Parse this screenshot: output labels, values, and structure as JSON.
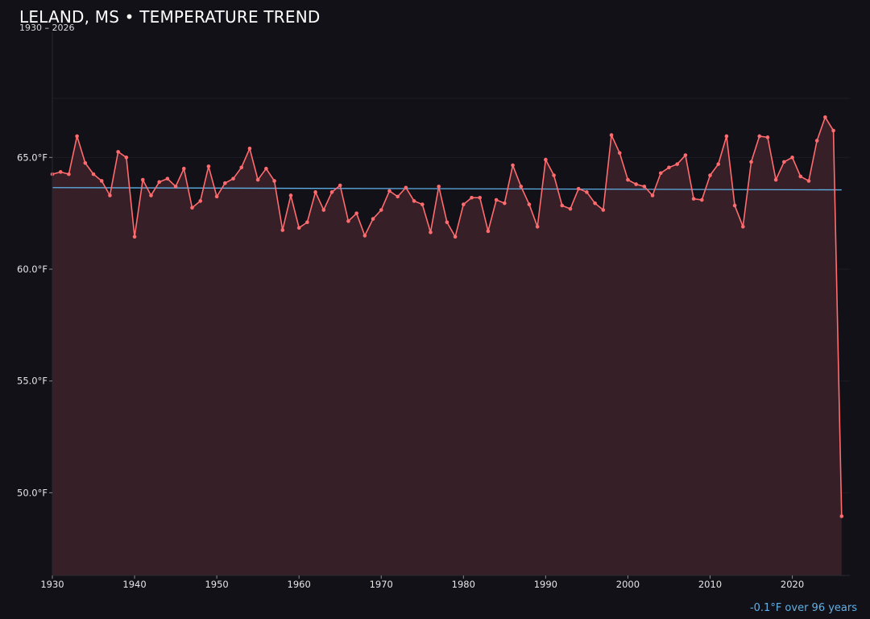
{
  "colors": {
    "background": "#121118",
    "series_line": "#ff6b6e",
    "series_fill": "#361f26",
    "trend_line": "#5fb0e6",
    "grid": "#1d1b23",
    "text": "#e6e6e6"
  },
  "header": {
    "title": "LELAND, MS • TEMPERATURE TREND",
    "subtitle": "1930 – 2026"
  },
  "footer": {
    "trend_note": "-0.1°F over 96 years"
  },
  "chart_data": {
    "type": "line",
    "title": "LELAND, MS • TEMPERATURE TREND",
    "subtitle": "1930 – 2026",
    "xlabel": "",
    "ylabel": "",
    "xlim": [
      1930,
      2027
    ],
    "ylim": [
      46.3,
      70.6
    ],
    "x_ticks": [
      1930,
      1940,
      1950,
      1960,
      1970,
      1980,
      1990,
      2000,
      2010,
      2020
    ],
    "y_ticks": [
      {
        "value": 50,
        "label": "50.0°F"
      },
      {
        "value": 55,
        "label": "55.0°F"
      },
      {
        "value": 60,
        "label": "60.0°F"
      },
      {
        "value": 65,
        "label": "65.0°F"
      }
    ],
    "grid": true,
    "series": [
      {
        "x": [
          1930,
          1931,
          1932,
          1933,
          1934,
          1935,
          1936,
          1937,
          1938,
          1939,
          1940,
          1941,
          1942,
          1943,
          1944,
          1945,
          1946,
          1947,
          1948,
          1949,
          1950,
          1951,
          1952,
          1953,
          1954,
          1955,
          1956,
          1957,
          1958,
          1959,
          1960,
          1961,
          1962,
          1963,
          1964,
          1965,
          1966,
          1967,
          1968,
          1969,
          1970,
          1971,
          1972,
          1973,
          1974,
          1975,
          1976,
          1977,
          1978,
          1979,
          1980,
          1981,
          1982,
          1983,
          1984,
          1985,
          1986,
          1987,
          1988,
          1989,
          1990,
          1991,
          1992,
          1993,
          1994,
          1995,
          1996,
          1997,
          1998,
          1999,
          2000,
          2001,
          2002,
          2003,
          2004,
          2005,
          2006,
          2007,
          2008,
          2009,
          2010,
          2011,
          2012,
          2013,
          2014,
          2015,
          2016,
          2017,
          2018,
          2019,
          2020,
          2021,
          2022,
          2023,
          2024,
          2025,
          2026
        ],
        "values": [
          64.25,
          64.35,
          64.25,
          65.95,
          64.75,
          64.25,
          63.95,
          63.3,
          65.25,
          65.0,
          61.45,
          64.0,
          63.3,
          63.9,
          64.05,
          63.7,
          64.5,
          62.75,
          63.05,
          64.6,
          63.25,
          63.85,
          64.05,
          64.55,
          65.4,
          64.0,
          64.5,
          63.95,
          61.75,
          63.3,
          61.85,
          62.1,
          63.45,
          62.65,
          63.45,
          63.75,
          62.15,
          62.5,
          61.5,
          62.25,
          62.65,
          63.5,
          63.25,
          63.65,
          63.05,
          62.9,
          61.65,
          63.7,
          62.1,
          61.45,
          62.9,
          63.2,
          63.2,
          61.7,
          63.1,
          62.95,
          64.65,
          63.7,
          62.9,
          61.9,
          64.9,
          64.2,
          62.85,
          62.7,
          63.6,
          63.45,
          62.95,
          62.65,
          66.0,
          65.2,
          64.0,
          63.8,
          63.7,
          63.3,
          64.3,
          64.55,
          64.7,
          65.1,
          63.15,
          63.1,
          64.2,
          64.7,
          65.95,
          62.85,
          61.9,
          64.8,
          65.95,
          65.9,
          64.0,
          64.8,
          65.0,
          64.15,
          63.95,
          65.75,
          66.8,
          66.2,
          48.95
        ]
      }
    ],
    "trend": {
      "start": [
        1930,
        63.65
      ],
      "end": [
        2026,
        63.55
      ]
    }
  }
}
